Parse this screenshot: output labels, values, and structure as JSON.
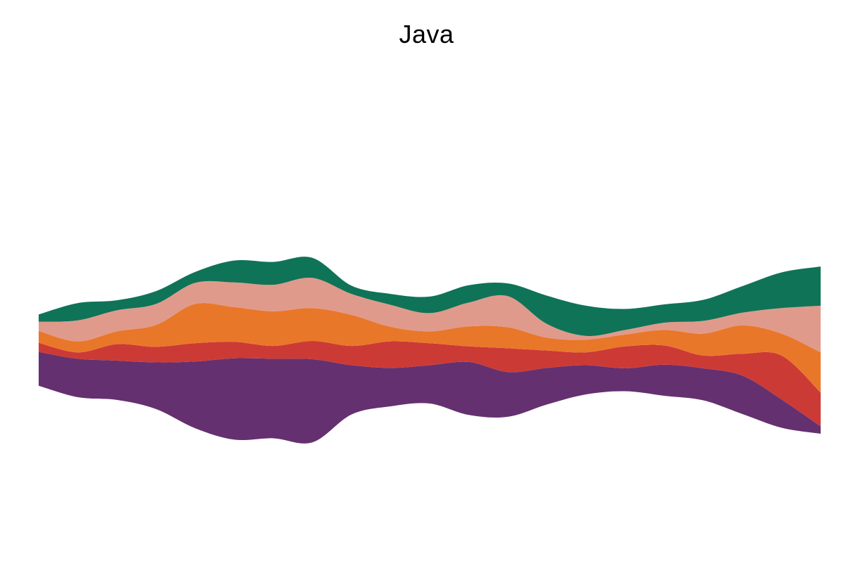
{
  "chart_data": {
    "type": "area",
    "subtype": "streamgraph",
    "title": "Java",
    "axes_visible": false,
    "grid": false,
    "legend": "none",
    "x": [
      0,
      1,
      2,
      3,
      4,
      5,
      6,
      7,
      8,
      9,
      10,
      11,
      12,
      13,
      14,
      15,
      16,
      17,
      18,
      19,
      20
    ],
    "series": [
      {
        "color": "#65306f",
        "values": [
          37,
          42,
          43,
          51,
          73,
          89,
          87,
          91,
          54,
          42,
          42,
          58,
          49,
          40,
          32,
          25,
          34,
          35,
          42,
          31,
          8
        ]
      },
      {
        "color": "#cc3a35",
        "values": [
          10,
          7,
          18,
          17,
          20,
          18,
          14,
          20,
          21,
          29,
          24,
          17,
          26,
          19,
          14,
          24,
          21,
          14,
          24,
          48,
          37
        ]
      },
      {
        "color": "#e9772a",
        "values": [
          13,
          12,
          14,
          24,
          43,
          38,
          38,
          36,
          34,
          16,
          13,
          22,
          23,
          14,
          14,
          13,
          17,
          24,
          31,
          24,
          44
        ]
      },
      {
        "color": "#e09a8b",
        "values": [
          10,
          23,
          23,
          23,
          23,
          27,
          29,
          33,
          23,
          24,
          20,
          26,
          34,
          15,
          4,
          5,
          8,
          14,
          14,
          28,
          51
        ]
      },
      {
        "color": "#0f7358",
        "values": [
          8,
          19,
          11,
          14,
          12,
          24,
          25,
          22,
          9,
          12,
          18,
          19,
          14,
          31,
          33,
          23,
          20,
          23,
          29,
          39,
          43
        ]
      }
    ]
  }
}
